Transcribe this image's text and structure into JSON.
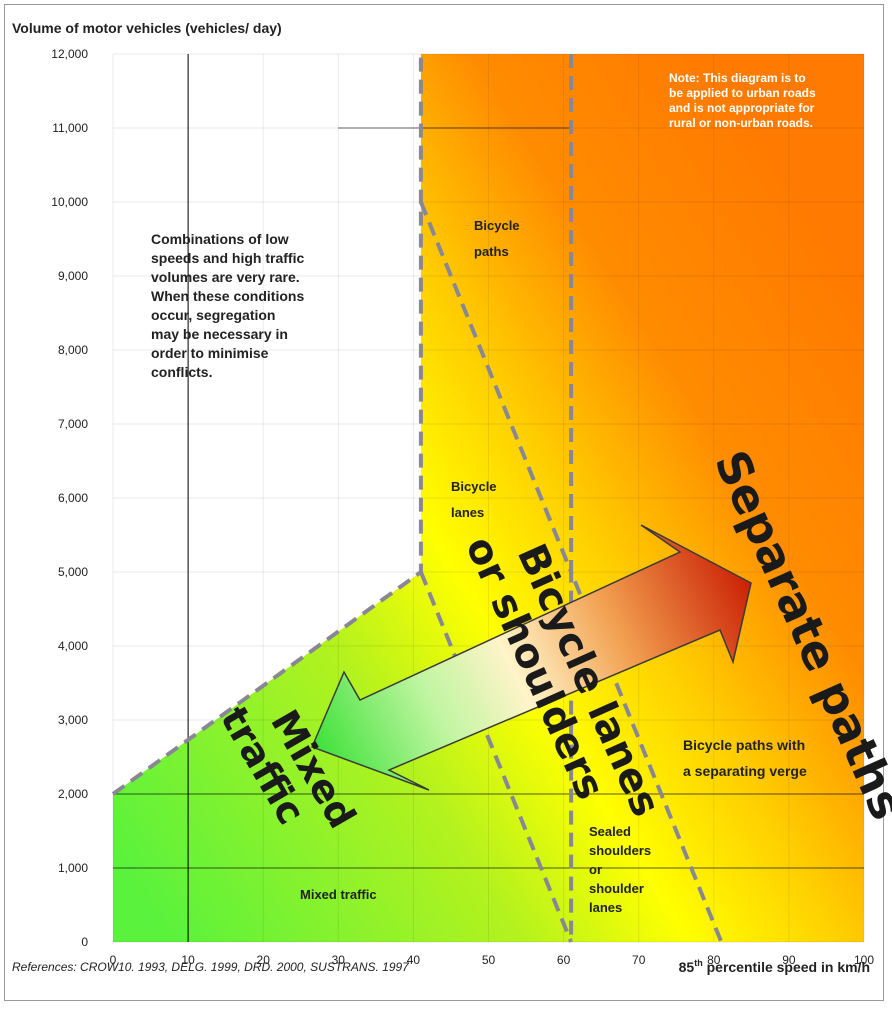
{
  "chart_data": {
    "type": "area",
    "ylabel": "Volume of motor vehicles (vehicles/ day)",
    "xlabel_prefix": "85",
    "xlabel_sup": "th",
    "xlabel_suffix": " percentile speed in km/h",
    "xlim": [
      0,
      100
    ],
    "ylim": [
      0,
      12000
    ],
    "x_ticks": [
      "0",
      "10",
      "20",
      "30",
      "40",
      "50",
      "60",
      "70",
      "80",
      "90",
      "100"
    ],
    "y_ticks": [
      "0",
      "1,000",
      "2,000",
      "3,000",
      "4,000",
      "5,000",
      "6,000",
      "7,000",
      "8,000",
      "9,000",
      "10,000",
      "11,000",
      "12,000"
    ],
    "references": "References:  CROW10. 1993, DELG. 1999, DRD. 2000, SUSTRANS. 1997",
    "note_lines": [
      "Note: This diagram is to",
      "be applied to urban roads",
      "and is not appropriate for",
      "rural or non-urban roads."
    ],
    "low_speed_note_lines": [
      "Combinations of low",
      "speeds and high traffic",
      "volumes are very rare.",
      "When these conditions",
      "occur, segregation",
      "may be necessary in",
      "order to minimise",
      "conflicts."
    ],
    "boundaries": [
      {
        "name": "mixed-upper",
        "points": [
          [
            0,
            2000
          ],
          [
            41,
            5000
          ],
          [
            41,
            12000
          ]
        ]
      },
      {
        "name": "mixed-lane",
        "points": [
          [
            41,
            5000
          ],
          [
            61,
            0
          ]
        ]
      },
      {
        "name": "lane-path",
        "points": [
          [
            41,
            10000
          ],
          [
            61,
            5000
          ],
          [
            61,
            0
          ]
        ]
      },
      {
        "name": "shoulder-path",
        "points": [
          [
            61,
            12000
          ],
          [
            61,
            5000
          ],
          [
            81,
            0
          ]
        ]
      }
    ],
    "zones": [
      {
        "label": "Mixed traffic",
        "color": "#6ef04a"
      },
      {
        "label_lines": [
          "Bicycle",
          "lanes"
        ],
        "color": "#ffe600"
      },
      {
        "label_lines": [
          "Bicycle",
          "paths"
        ],
        "color": "#ffc800"
      },
      {
        "label_lines": [
          "Sealed",
          "shoulders",
          "or",
          "shoulder",
          "lanes"
        ],
        "color": "#ffd000"
      },
      {
        "label_lines": [
          "Bicycle paths with",
          "a separating verge"
        ],
        "color": "#ff8400"
      }
    ],
    "big_labels": {
      "mixed": [
        "Mixed",
        "traffic"
      ],
      "lanes": [
        "Bicycle lanes",
        "or shoulders"
      ],
      "separate": "Separate paths"
    }
  }
}
